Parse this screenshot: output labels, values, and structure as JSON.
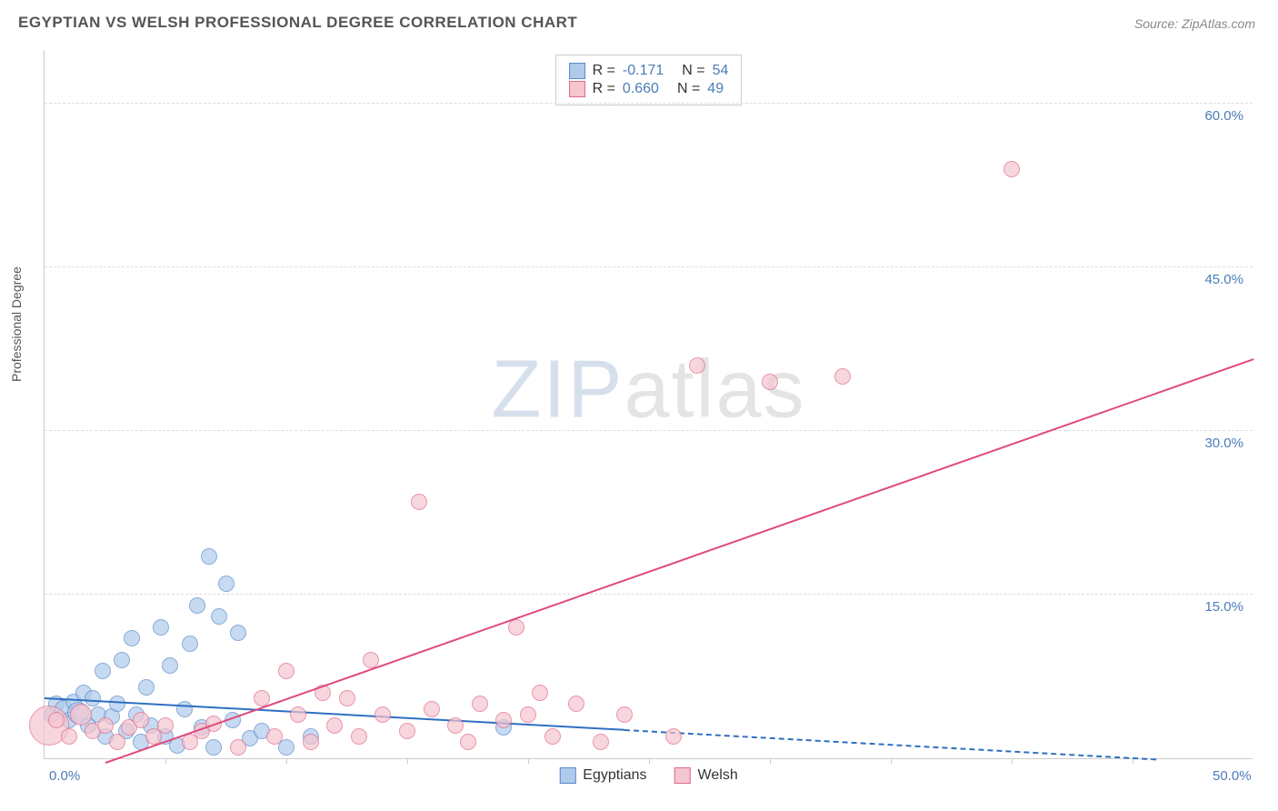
{
  "title": "EGYPTIAN VS WELSH PROFESSIONAL DEGREE CORRELATION CHART",
  "source": "Source: ZipAtlas.com",
  "y_axis_label": "Professional Degree",
  "watermark": {
    "part1": "ZIP",
    "part2": "atlas"
  },
  "chart": {
    "type": "scatter",
    "background_color": "#ffffff",
    "grid_color": "#dddddd",
    "axis_color": "#cccccc",
    "tick_label_color": "#4a7db8",
    "xlim": [
      0,
      50
    ],
    "ylim": [
      0,
      65
    ],
    "x_ticks_display": [
      {
        "v": 0,
        "l": "0.0%"
      },
      {
        "v": 50,
        "l": "50.0%"
      }
    ],
    "x_minor_ticks": [
      5,
      10,
      15,
      20,
      25,
      30,
      35,
      40,
      45
    ],
    "y_ticks": [
      {
        "v": 15,
        "l": "15.0%"
      },
      {
        "v": 30,
        "l": "30.0%"
      },
      {
        "v": 45,
        "l": "45.0%"
      },
      {
        "v": 60,
        "l": "60.0%"
      }
    ],
    "series": [
      {
        "name": "Egyptians",
        "marker_fill": "#aecbec",
        "marker_stroke": "#5a8ac8",
        "marker_opacity": 0.7,
        "marker_radius": 9,
        "trend_color": "#2f6fc2",
        "trend_solid": {
          "x1": 0,
          "y1": 5.4,
          "x2": 24,
          "y2": 2.5
        },
        "trend_dashed": {
          "x1": 24,
          "y1": 2.5,
          "x2": 46,
          "y2": -0.2
        },
        "stats": {
          "R": "-0.171",
          "N": "54"
        },
        "points": [
          {
            "x": 0.3,
            "y": 4,
            "r": 9
          },
          {
            "x": 0.5,
            "y": 5,
            "r": 9
          },
          {
            "x": 0.8,
            "y": 4.5,
            "r": 10
          },
          {
            "x": 1,
            "y": 3.5,
            "r": 9
          },
          {
            "x": 1.2,
            "y": 5.2,
            "r": 9
          },
          {
            "x": 1.4,
            "y": 4.2,
            "r": 12
          },
          {
            "x": 1.6,
            "y": 6,
            "r": 9
          },
          {
            "x": 1.8,
            "y": 3,
            "r": 9
          },
          {
            "x": 2,
            "y": 5.5,
            "r": 9
          },
          {
            "x": 2.2,
            "y": 4,
            "r": 9
          },
          {
            "x": 2.4,
            "y": 8,
            "r": 9
          },
          {
            "x": 2.5,
            "y": 2,
            "r": 9
          },
          {
            "x": 2.8,
            "y": 3.8,
            "r": 9
          },
          {
            "x": 3,
            "y": 5,
            "r": 9
          },
          {
            "x": 3.2,
            "y": 9,
            "r": 9
          },
          {
            "x": 3.4,
            "y": 2.5,
            "r": 9
          },
          {
            "x": 3.6,
            "y": 11,
            "r": 9
          },
          {
            "x": 3.8,
            "y": 4,
            "r": 9
          },
          {
            "x": 4,
            "y": 1.5,
            "r": 9
          },
          {
            "x": 4.2,
            "y": 6.5,
            "r": 9
          },
          {
            "x": 4.4,
            "y": 3,
            "r": 9
          },
          {
            "x": 4.8,
            "y": 12,
            "r": 9
          },
          {
            "x": 5,
            "y": 2,
            "r": 9
          },
          {
            "x": 5.2,
            "y": 8.5,
            "r": 9
          },
          {
            "x": 5.5,
            "y": 1.2,
            "r": 9
          },
          {
            "x": 5.8,
            "y": 4.5,
            "r": 9
          },
          {
            "x": 6,
            "y": 10.5,
            "r": 9
          },
          {
            "x": 6.3,
            "y": 14,
            "r": 9
          },
          {
            "x": 6.5,
            "y": 2.8,
            "r": 9
          },
          {
            "x": 6.8,
            "y": 18.5,
            "r": 9
          },
          {
            "x": 7,
            "y": 1,
            "r": 9
          },
          {
            "x": 7.2,
            "y": 13,
            "r": 9
          },
          {
            "x": 7.5,
            "y": 16,
            "r": 9
          },
          {
            "x": 7.8,
            "y": 3.5,
            "r": 9
          },
          {
            "x": 8,
            "y": 11.5,
            "r": 9
          },
          {
            "x": 8.5,
            "y": 1.8,
            "r": 9
          },
          {
            "x": 9,
            "y": 2.5,
            "r": 9
          },
          {
            "x": 10,
            "y": 1,
            "r": 9
          },
          {
            "x": 11,
            "y": 2,
            "r": 9
          },
          {
            "x": 19,
            "y": 2.8,
            "r": 9
          }
        ]
      },
      {
        "name": "Welsh",
        "marker_fill": "#f5c5d0",
        "marker_stroke": "#e06a8a",
        "marker_opacity": 0.7,
        "marker_radius": 9,
        "trend_color": "#e04a7a",
        "trend_solid": {
          "x1": 2.5,
          "y1": -0.5,
          "x2": 50,
          "y2": 36.5
        },
        "trend_dashed": null,
        "stats": {
          "R": "0.660",
          "N": "49"
        },
        "points": [
          {
            "x": 0.2,
            "y": 3,
            "r": 22
          },
          {
            "x": 0.5,
            "y": 3.5,
            "r": 9
          },
          {
            "x": 1,
            "y": 2,
            "r": 9
          },
          {
            "x": 1.5,
            "y": 4,
            "r": 12
          },
          {
            "x": 2,
            "y": 2.5,
            "r": 9
          },
          {
            "x": 2.5,
            "y": 3,
            "r": 9
          },
          {
            "x": 3,
            "y": 1.5,
            "r": 9
          },
          {
            "x": 3.5,
            "y": 2.8,
            "r": 9
          },
          {
            "x": 4,
            "y": 3.5,
            "r": 9
          },
          {
            "x": 4.5,
            "y": 2,
            "r": 9
          },
          {
            "x": 5,
            "y": 3,
            "r": 9
          },
          {
            "x": 6,
            "y": 1.5,
            "r": 9
          },
          {
            "x": 6.5,
            "y": 2.5,
            "r": 9
          },
          {
            "x": 7,
            "y": 3.2,
            "r": 9
          },
          {
            "x": 8,
            "y": 1,
            "r": 9
          },
          {
            "x": 9,
            "y": 5.5,
            "r": 9
          },
          {
            "x": 9.5,
            "y": 2,
            "r": 9
          },
          {
            "x": 10,
            "y": 8,
            "r": 9
          },
          {
            "x": 10.5,
            "y": 4,
            "r": 9
          },
          {
            "x": 11,
            "y": 1.5,
            "r": 9
          },
          {
            "x": 11.5,
            "y": 6,
            "r": 9
          },
          {
            "x": 12,
            "y": 3,
            "r": 9
          },
          {
            "x": 12.5,
            "y": 5.5,
            "r": 9
          },
          {
            "x": 13,
            "y": 2,
            "r": 9
          },
          {
            "x": 13.5,
            "y": 9,
            "r": 9
          },
          {
            "x": 14,
            "y": 4,
            "r": 9
          },
          {
            "x": 15,
            "y": 2.5,
            "r": 9
          },
          {
            "x": 15.5,
            "y": 23.5,
            "r": 9
          },
          {
            "x": 16,
            "y": 4.5,
            "r": 9
          },
          {
            "x": 17,
            "y": 3,
            "r": 9
          },
          {
            "x": 17.5,
            "y": 1.5,
            "r": 9
          },
          {
            "x": 18,
            "y": 5,
            "r": 9
          },
          {
            "x": 19,
            "y": 3.5,
            "r": 9
          },
          {
            "x": 19.5,
            "y": 12,
            "r": 9
          },
          {
            "x": 20,
            "y": 4,
            "r": 9
          },
          {
            "x": 20.5,
            "y": 6,
            "r": 9
          },
          {
            "x": 21,
            "y": 2,
            "r": 9
          },
          {
            "x": 22,
            "y": 5,
            "r": 9
          },
          {
            "x": 23,
            "y": 1.5,
            "r": 9
          },
          {
            "x": 24,
            "y": 4,
            "r": 9
          },
          {
            "x": 26,
            "y": 2,
            "r": 9
          },
          {
            "x": 27,
            "y": 36,
            "r": 9
          },
          {
            "x": 30,
            "y": 34.5,
            "r": 9
          },
          {
            "x": 33,
            "y": 35,
            "r": 9
          },
          {
            "x": 40,
            "y": 54,
            "r": 9
          }
        ]
      }
    ]
  }
}
